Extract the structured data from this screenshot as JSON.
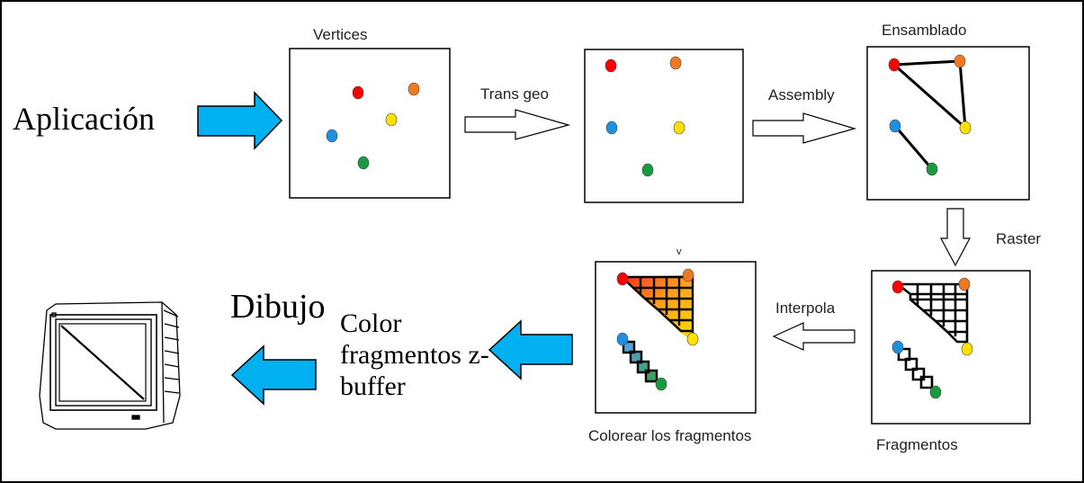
{
  "labels": {
    "aplicacion": "Aplicación",
    "dibujo": "Dibujo",
    "color_fragmentos_zbuffer": "Color fragmentos z-buffer",
    "vertices": "Vertices",
    "trans_geo": "Trans geo",
    "assembly": "Assembly",
    "ensamblado": "Ensamblado",
    "raster": "Raster",
    "interpola": "Interpola",
    "colorear": "Colorear los fragmentos",
    "fragmentos": "Fragmentos",
    "small_mark": "v"
  },
  "colors": {
    "blue_arrow": "#00b0f0",
    "red": "#ff0000",
    "orange": "#f07820",
    "yellow": "#ffe000",
    "blue": "#1e90e0",
    "green": "#1a9a40",
    "outline": "#000000"
  },
  "vertices": [
    {
      "name": "red",
      "color": "#ff0000"
    },
    {
      "name": "orange",
      "color": "#f07820"
    },
    {
      "name": "blue",
      "color": "#1e90e0"
    },
    {
      "name": "yellow",
      "color": "#ffe000"
    },
    {
      "name": "green",
      "color": "#1a9a40"
    }
  ],
  "icons": {
    "monitor": "crt-monitor-icon"
  }
}
